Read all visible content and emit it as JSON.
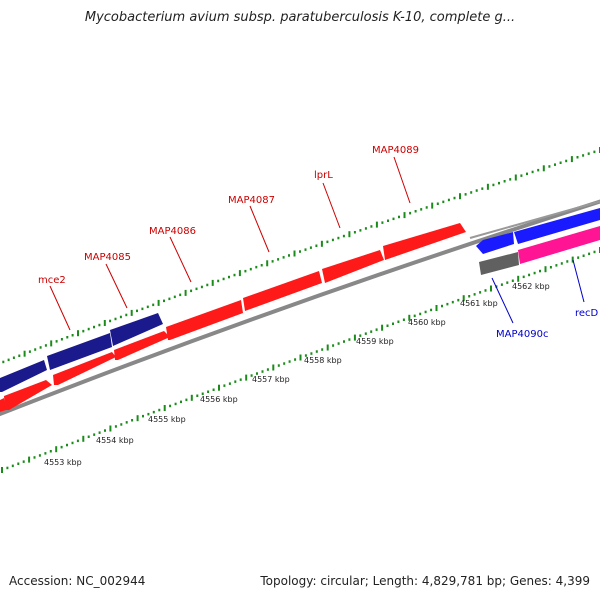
{
  "header": {
    "title": "Mycobacterium avium subsp. paratuberculosis K-10, complete g..."
  },
  "footer": {
    "accession": "Accession: NC_002944",
    "summary": "Topology: circular; Length: 4,829,781 bp; Genes: 4,399"
  },
  "colors": {
    "forward_gene": "#ff1a1a",
    "reverse_gene": "#1a1a8c",
    "reverse_gene_alt": "#1a1aff",
    "pink_gene": "#ff1493",
    "grey_gene": "#606060",
    "backbone": "#888888",
    "gc_ticks": "#1a8c1a",
    "forward_label": "#cc0000",
    "reverse_label": "#0000cc"
  },
  "gene_labels": [
    {
      "text": "mce2",
      "strand": "forward"
    },
    {
      "text": "MAP4085",
      "strand": "forward"
    },
    {
      "text": "MAP4086",
      "strand": "forward"
    },
    {
      "text": "MAP4087",
      "strand": "forward"
    },
    {
      "text": "lprL",
      "strand": "forward"
    },
    {
      "text": "MAP4089",
      "strand": "forward"
    },
    {
      "text": "MAP4090c",
      "strand": "reverse"
    },
    {
      "text": "recD",
      "strand": "reverse"
    }
  ],
  "scale_ticks": [
    "4553 kbp",
    "4554 kbp",
    "4555 kbp",
    "4556 kbp",
    "4557 kbp",
    "4558 kbp",
    "4559 kbp",
    "4560 kbp",
    "4561 kbp",
    "4562 kbp"
  ]
}
